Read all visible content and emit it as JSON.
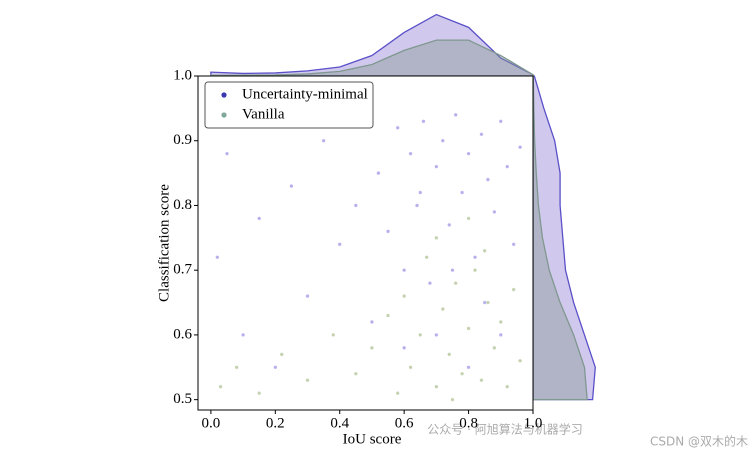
{
  "chart_data": {
    "type": "scatter",
    "x_label": "IoU score",
    "y_label": "Classification score",
    "xlim": [
      -0.04,
      1.0
    ],
    "ylim": [
      0.484,
      1.0
    ],
    "xticks": [
      {
        "value": 0,
        "label": "0.0"
      },
      0.2,
      0.4,
      0.6,
      0.8,
      {
        "value": 1,
        "label": "1.0"
      }
    ],
    "yticks": [
      0.5,
      0.6,
      0.7,
      0.8,
      0.9,
      {
        "value": 1,
        "label": "1.0"
      }
    ],
    "legend": "upper left",
    "top_density_lim": [
      0,
      2.5
    ],
    "right_density_lim": [
      0,
      2.4
    ],
    "x_density_grid": [
      0,
      0.1,
      0.2,
      0.3,
      0.4,
      0.5,
      0.6,
      0.7,
      0.8,
      0.9,
      1.0
    ],
    "y_density_grid": [
      0.5,
      0.55,
      0.6,
      0.65,
      0.7,
      0.75,
      0.8,
      0.85,
      0.9,
      0.95,
      1.0
    ],
    "series": [
      {
        "name": "Uncertainty-minimal",
        "color": "#3a35b0",
        "x": [
          0.02,
          0.05,
          0.1,
          0.15,
          0.2,
          0.25,
          0.3,
          0.35,
          0.4,
          0.45,
          0.5,
          0.52,
          0.55,
          0.58,
          0.6,
          0.62,
          0.64,
          0.66,
          0.68,
          0.7,
          0.72,
          0.74,
          0.76,
          0.78,
          0.8,
          0.82,
          0.84,
          0.86,
          0.88,
          0.9,
          0.92,
          0.94,
          0.96,
          0.6,
          0.7,
          0.8,
          0.65,
          0.75,
          0.85,
          0.9
        ],
        "y": [
          0.72,
          0.88,
          0.6,
          0.78,
          0.55,
          0.83,
          0.66,
          0.9,
          0.74,
          0.8,
          0.62,
          0.85,
          0.76,
          0.92,
          0.7,
          0.88,
          0.8,
          0.93,
          0.68,
          0.86,
          0.9,
          0.77,
          0.94,
          0.82,
          0.88,
          0.72,
          0.91,
          0.84,
          0.79,
          0.93,
          0.86,
          0.74,
          0.89,
          0.58,
          0.6,
          0.55,
          0.82,
          0.7,
          0.65,
          0.6
        ],
        "x_density": [
          0.15,
          0.1,
          0.12,
          0.2,
          0.35,
          0.8,
          1.7,
          2.4,
          1.9,
          0.7,
          0.05
        ],
        "y_density": [
          2.2,
          2.3,
          1.9,
          1.5,
          1.2,
          1.1,
          1.0,
          1.0,
          0.8,
          0.4,
          0.05
        ]
      },
      {
        "name": "Vanilla",
        "color": "#7fa89a",
        "x": [
          0.03,
          0.08,
          0.15,
          0.22,
          0.3,
          0.38,
          0.45,
          0.5,
          0.55,
          0.58,
          0.6,
          0.62,
          0.65,
          0.67,
          0.7,
          0.72,
          0.74,
          0.76,
          0.78,
          0.8,
          0.82,
          0.84,
          0.86,
          0.88,
          0.9,
          0.92,
          0.94,
          0.96,
          0.7,
          0.8,
          0.75,
          0.85
        ],
        "y": [
          0.52,
          0.55,
          0.51,
          0.57,
          0.53,
          0.6,
          0.54,
          0.58,
          0.63,
          0.51,
          0.66,
          0.55,
          0.6,
          0.72,
          0.52,
          0.64,
          0.57,
          0.68,
          0.54,
          0.61,
          0.7,
          0.53,
          0.65,
          0.58,
          0.62,
          0.52,
          0.67,
          0.56,
          0.75,
          0.78,
          0.5,
          0.73
        ],
        "x_density": [
          0.03,
          0.03,
          0.04,
          0.08,
          0.18,
          0.45,
          1.0,
          1.4,
          1.4,
          0.8,
          0.05
        ],
        "y_density": [
          2.0,
          1.9,
          1.5,
          1.0,
          0.6,
          0.35,
          0.2,
          0.12,
          0.06,
          0.03,
          0.01
        ]
      }
    ]
  },
  "watermarks": [
    "公众号 · 阿旭算法与机器学习",
    "CSDN @双木的木"
  ]
}
